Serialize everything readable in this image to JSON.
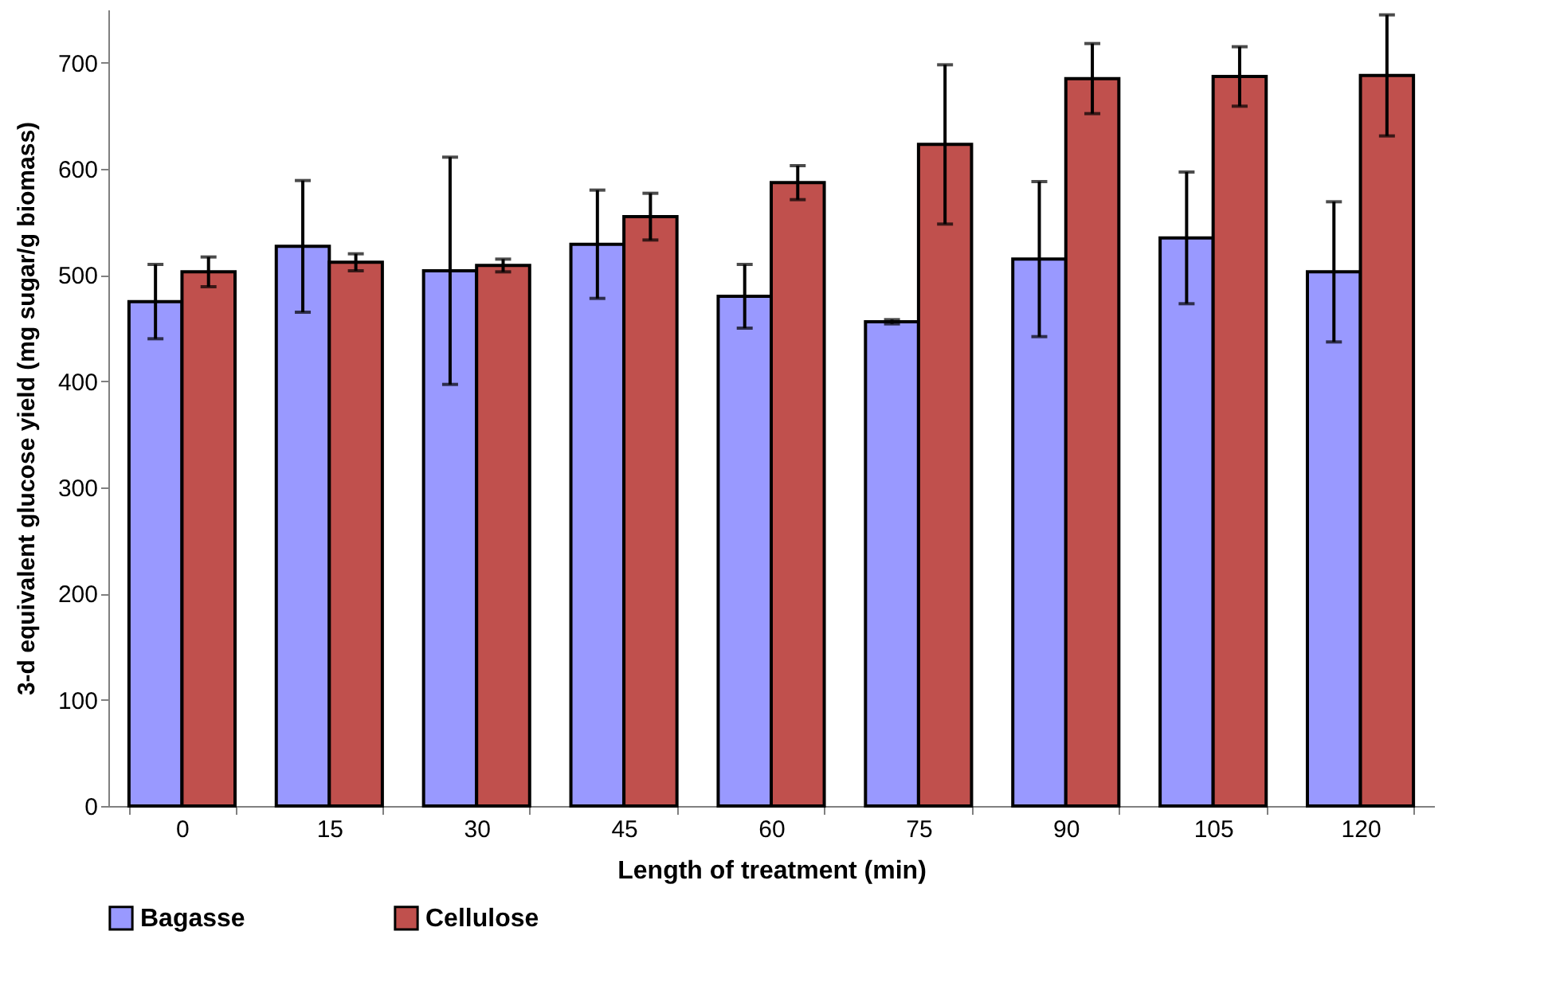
{
  "chart_data": {
    "type": "bar",
    "xlabel": "Length of treatment (min)",
    "ylabel": "3-d equivalent glucose yield (mg sugar/g biomass)",
    "categories": [
      "0",
      "15",
      "30",
      "45",
      "60",
      "75",
      "90",
      "105",
      "120"
    ],
    "series": [
      {
        "name": "Bagasse",
        "color": "#9999ff",
        "values": [
          475,
          527,
          504,
          529,
          480,
          456,
          515,
          535,
          503
        ],
        "errors": [
          35,
          62,
          107,
          51,
          30,
          2,
          73,
          62,
          66
        ]
      },
      {
        "name": "Cellulose",
        "color": "#c0504d",
        "values": [
          503,
          512,
          509,
          555,
          587,
          623,
          685,
          687,
          688
        ],
        "errors": [
          14,
          8,
          6,
          22,
          16,
          75,
          33,
          28,
          57
        ]
      }
    ],
    "ylim": [
      0,
      750
    ],
    "yticks": [
      0,
      100,
      200,
      300,
      400,
      500,
      600,
      700
    ],
    "grid": false,
    "legend": "bottom"
  }
}
